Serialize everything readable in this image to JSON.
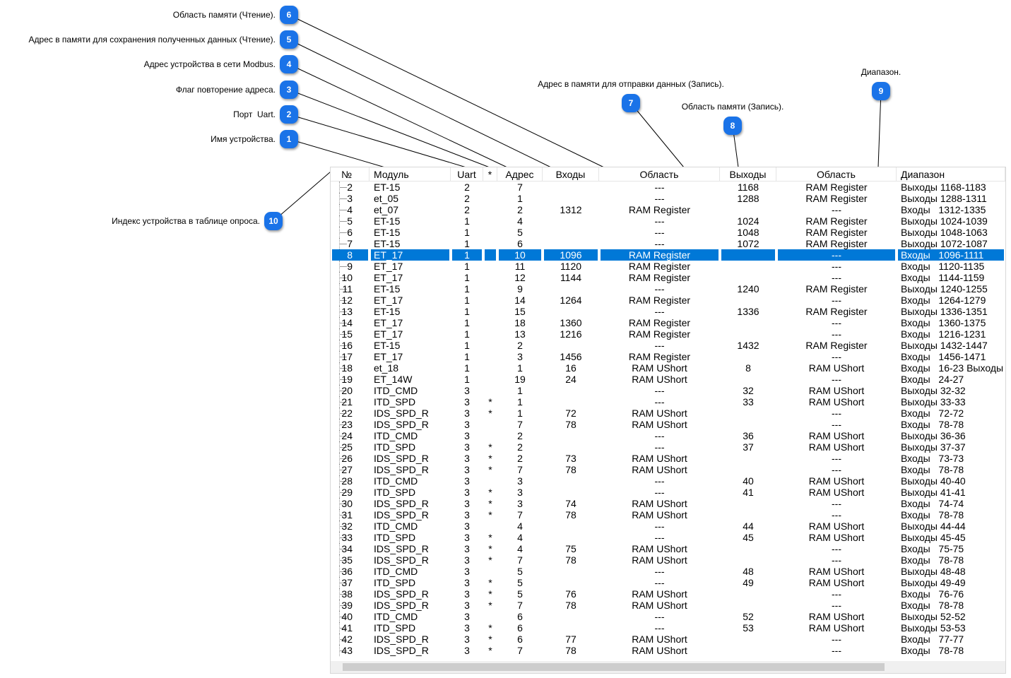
{
  "callouts": [
    {
      "number": "6",
      "label": "Область памяти (Чтение)."
    },
    {
      "number": "5",
      "label": "Адрес в памяти для сохранения полученных данных (Чтение)."
    },
    {
      "number": "4",
      "label": "Адрес устройства в сети Modbus."
    },
    {
      "number": "3",
      "label": "Флаг повторение адреса."
    },
    {
      "number": "2",
      "label": "Порт  Uart."
    },
    {
      "number": "1",
      "label": "Имя устройства."
    },
    {
      "number": "7",
      "label": "Адрес в памяти для отправки данных (Запись)."
    },
    {
      "number": "8",
      "label": "Область памяти (Запись)."
    },
    {
      "number": "9",
      "label": "Диапазон."
    },
    {
      "number": "10",
      "label": "Индекс устройства в таблице опроса."
    }
  ],
  "table": {
    "header": [
      "№",
      "Модуль",
      "Uart",
      "*",
      "Адрес",
      "Входы",
      "Область",
      "Выходы",
      "Область",
      "Диапазон"
    ],
    "selected_row": "8",
    "rows": [
      [
        "2",
        "ET-15",
        "2",
        null,
        "7",
        null,
        "---",
        "1168",
        "RAM Register",
        "Выходы 1168-1183"
      ],
      [
        "3",
        "et_05",
        "2",
        null,
        "1",
        null,
        "---",
        "1288",
        "RAM Register",
        "Выходы 1288-1311"
      ],
      [
        "4",
        "et_07",
        "2",
        null,
        "2",
        "1312",
        "RAM Register",
        null,
        "---",
        "Входы   1312-1335"
      ],
      [
        "5",
        "ET-15",
        "1",
        null,
        "4",
        null,
        "---",
        "1024",
        "RAM Register",
        "Выходы 1024-1039"
      ],
      [
        "6",
        "ET-15",
        "1",
        null,
        "5",
        null,
        "---",
        "1048",
        "RAM Register",
        "Выходы 1048-1063"
      ],
      [
        "7",
        "ET-15",
        "1",
        null,
        "6",
        null,
        "---",
        "1072",
        "RAM Register",
        "Выходы 1072-1087"
      ],
      [
        "8",
        "ET_17",
        "1",
        null,
        "10",
        "1096",
        "RAM Register",
        null,
        "---",
        "Входы   1096-1111"
      ],
      [
        "9",
        "ET_17",
        "1",
        null,
        "11",
        "1120",
        "RAM Register",
        null,
        "---",
        "Входы   1120-1135"
      ],
      [
        "10",
        "ET_17",
        "1",
        null,
        "12",
        "1144",
        "RAM Register",
        null,
        "---",
        "Входы   1144-1159"
      ],
      [
        "11",
        "ET-15",
        "1",
        null,
        "9",
        null,
        "---",
        "1240",
        "RAM Register",
        "Выходы 1240-1255"
      ],
      [
        "12",
        "ET_17",
        "1",
        null,
        "14",
        "1264",
        "RAM Register",
        null,
        "---",
        "Входы   1264-1279"
      ],
      [
        "13",
        "ET-15",
        "1",
        null,
        "15",
        null,
        "---",
        "1336",
        "RAM Register",
        "Выходы 1336-1351"
      ],
      [
        "14",
        "ET_17",
        "1",
        null,
        "18",
        "1360",
        "RAM Register",
        null,
        "---",
        "Входы   1360-1375"
      ],
      [
        "15",
        "ET_17",
        "1",
        null,
        "13",
        "1216",
        "RAM Register",
        null,
        "---",
        "Входы   1216-1231"
      ],
      [
        "16",
        "ET-15",
        "1",
        null,
        "2",
        null,
        "---",
        "1432",
        "RAM Register",
        "Выходы 1432-1447"
      ],
      [
        "17",
        "ET_17",
        "1",
        null,
        "3",
        "1456",
        "RAM Register",
        null,
        "---",
        "Входы   1456-1471"
      ],
      [
        "18",
        "et_18",
        "1",
        null,
        "1",
        "16",
        "RAM UShort",
        "8",
        "RAM UShort",
        "Входы   16-23 Выходы"
      ],
      [
        "19",
        "ET_14W",
        "1",
        null,
        "19",
        "24",
        "RAM UShort",
        null,
        "---",
        "Входы   24-27"
      ],
      [
        "20",
        "ITD_CMD",
        "3",
        null,
        "1",
        null,
        "---",
        "32",
        "RAM UShort",
        "Выходы 32-32"
      ],
      [
        "21",
        "ITD_SPD",
        "3",
        "*",
        "1",
        null,
        "---",
        "33",
        "RAM UShort",
        "Выходы 33-33"
      ],
      [
        "22",
        "IDS_SPD_R",
        "3",
        "*",
        "1",
        "72",
        "RAM UShort",
        null,
        "---",
        "Входы   72-72"
      ],
      [
        "23",
        "IDS_SPD_R",
        "3",
        null,
        "7",
        "78",
        "RAM UShort",
        null,
        "---",
        "Входы   78-78"
      ],
      [
        "24",
        "ITD_CMD",
        "3",
        null,
        "2",
        null,
        "---",
        "36",
        "RAM UShort",
        "Выходы 36-36"
      ],
      [
        "25",
        "ITD_SPD",
        "3",
        "*",
        "2",
        null,
        "---",
        "37",
        "RAM UShort",
        "Выходы 37-37"
      ],
      [
        "26",
        "IDS_SPD_R",
        "3",
        "*",
        "2",
        "73",
        "RAM UShort",
        null,
        "---",
        "Входы   73-73"
      ],
      [
        "27",
        "IDS_SPD_R",
        "3",
        "*",
        "7",
        "78",
        "RAM UShort",
        null,
        "---",
        "Входы   78-78"
      ],
      [
        "28",
        "ITD_CMD",
        "3",
        null,
        "3",
        null,
        "---",
        "40",
        "RAM UShort",
        "Выходы 40-40"
      ],
      [
        "29",
        "ITD_SPD",
        "3",
        "*",
        "3",
        null,
        "---",
        "41",
        "RAM UShort",
        "Выходы 41-41"
      ],
      [
        "30",
        "IDS_SPD_R",
        "3",
        "*",
        "3",
        "74",
        "RAM UShort",
        null,
        "---",
        "Входы   74-74"
      ],
      [
        "31",
        "IDS_SPD_R",
        "3",
        "*",
        "7",
        "78",
        "RAM UShort",
        null,
        "---",
        "Входы   78-78"
      ],
      [
        "32",
        "ITD_CMD",
        "3",
        null,
        "4",
        null,
        "---",
        "44",
        "RAM UShort",
        "Выходы 44-44"
      ],
      [
        "33",
        "ITD_SPD",
        "3",
        "*",
        "4",
        null,
        "---",
        "45",
        "RAM UShort",
        "Выходы 45-45"
      ],
      [
        "34",
        "IDS_SPD_R",
        "3",
        "*",
        "4",
        "75",
        "RAM UShort",
        null,
        "---",
        "Входы   75-75"
      ],
      [
        "35",
        "IDS_SPD_R",
        "3",
        "*",
        "7",
        "78",
        "RAM UShort",
        null,
        "---",
        "Входы   78-78"
      ],
      [
        "36",
        "ITD_CMD",
        "3",
        null,
        "5",
        null,
        "---",
        "48",
        "RAM UShort",
        "Выходы 48-48"
      ],
      [
        "37",
        "ITD_SPD",
        "3",
        "*",
        "5",
        null,
        "---",
        "49",
        "RAM UShort",
        "Выходы 49-49"
      ],
      [
        "38",
        "IDS_SPD_R",
        "3",
        "*",
        "5",
        "76",
        "RAM UShort",
        null,
        "---",
        "Входы   76-76"
      ],
      [
        "39",
        "IDS_SPD_R",
        "3",
        "*",
        "7",
        "78",
        "RAM UShort",
        null,
        "---",
        "Входы   78-78"
      ],
      [
        "40",
        "ITD_CMD",
        "3",
        null,
        "6",
        null,
        "---",
        "52",
        "RAM UShort",
        "Выходы 52-52"
      ],
      [
        "41",
        "ITD_SPD",
        "3",
        "*",
        "6",
        null,
        "---",
        "53",
        "RAM UShort",
        "Выходы 53-53"
      ],
      [
        "42",
        "IDS_SPD_R",
        "3",
        "*",
        "6",
        "77",
        "RAM UShort",
        null,
        "---",
        "Входы   77-77"
      ],
      [
        "43",
        "IDS_SPD_R",
        "3",
        "*",
        "7",
        "78",
        "RAM UShort",
        null,
        "---",
        "Входы   78-78"
      ]
    ]
  }
}
